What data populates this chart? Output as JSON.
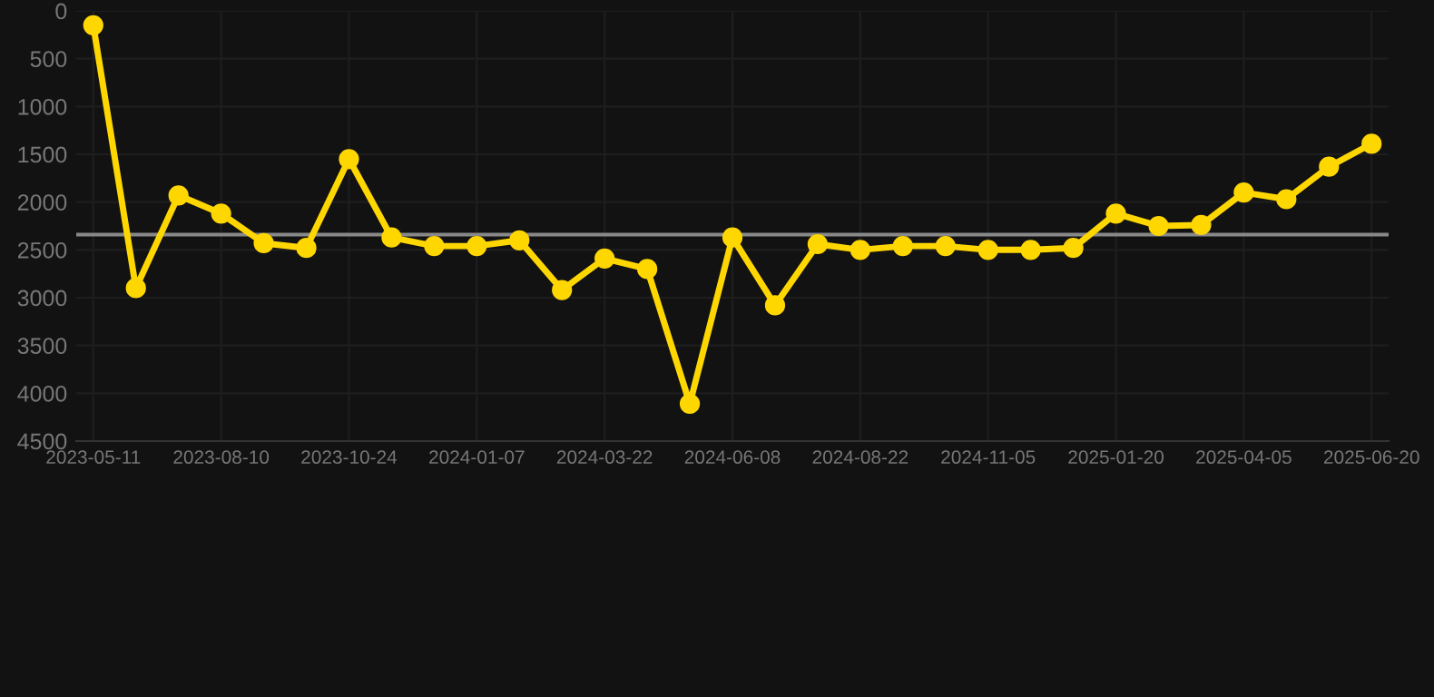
{
  "chart_data": {
    "type": "line",
    "categories": [
      "2023-05-11",
      null,
      null,
      "2023-08-10",
      null,
      null,
      "2023-10-24",
      null,
      null,
      "2024-01-07",
      null,
      null,
      "2024-03-22",
      null,
      null,
      "2024-06-08",
      null,
      null,
      "2024-08-22",
      null,
      null,
      "2024-11-05",
      null,
      null,
      "2025-01-20",
      null,
      null,
      "2025-04-05",
      null,
      null,
      "2025-06-20"
    ],
    "series": [
      {
        "color": "#ffd700",
        "values": [
          150,
          2900,
          1930,
          2120,
          2430,
          2480,
          1550,
          2370,
          2460,
          2460,
          2400,
          2920,
          2590,
          2700,
          4110,
          2370,
          3080,
          2440,
          2500,
          2460,
          2460,
          2500,
          2500,
          2480,
          2120,
          2250,
          2240,
          1900,
          1970,
          1630,
          1390
        ]
      }
    ],
    "ylim": [
      4500,
      0
    ],
    "yticks": [
      0,
      500,
      1000,
      1500,
      2000,
      2500,
      3000,
      3500,
      4000,
      4500
    ],
    "ref_lines": [
      {
        "axis": "y",
        "value": 2340,
        "color": "#888888"
      }
    ],
    "grid": true,
    "marker": "circle",
    "line_style": "solid"
  }
}
